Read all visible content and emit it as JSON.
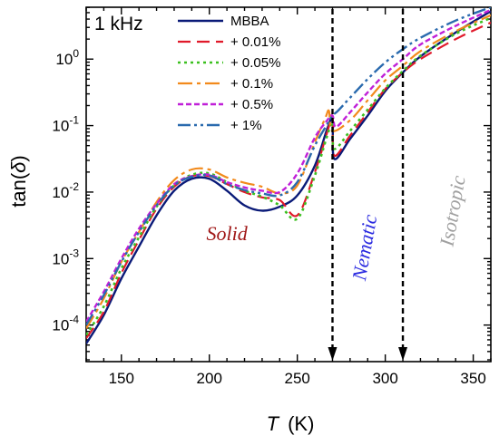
{
  "chart_data": {
    "type": "line",
    "corner_label": "1 kHz",
    "xlabel_symbol": "T",
    "xlabel_unit": "(K)",
    "ylabel_prefix": "tan(",
    "ylabel_symbol": "δ",
    "ylabel_suffix": ")",
    "y_scale": "log",
    "xlim": [
      130,
      360
    ],
    "ylim_log10": [
      -4.55,
      0.78
    ],
    "x_ticks": [
      150,
      200,
      250,
      300,
      350
    ],
    "y_ticks": [
      {
        "exp": -4,
        "base": "10",
        "sup": "-4"
      },
      {
        "exp": -3,
        "base": "10",
        "sup": "-3"
      },
      {
        "exp": -2,
        "base": "10",
        "sup": "-2"
      },
      {
        "exp": -1,
        "base": "10",
        "sup": "-1"
      },
      {
        "exp": 0,
        "base": "10",
        "sup": "0"
      }
    ],
    "legend_position": "top-left",
    "phase_labels": [
      {
        "text": "Solid",
        "x": 210,
        "ylog": -2.72,
        "rotate": 0,
        "color": "#a01818"
      },
      {
        "text": "Nematic",
        "x": 292,
        "ylog": -2.85,
        "rotate": -80,
        "color": "#2a2ae0"
      },
      {
        "text": "Isotropic",
        "x": 342,
        "ylog": -2.3,
        "rotate": -80,
        "color": "#a0a0a0"
      }
    ],
    "transitions": [
      270,
      310
    ],
    "series": [
      {
        "name": "MBBA",
        "color": "#0a1a78",
        "dash": "",
        "width": 2.4,
        "x": [
          130,
          140,
          150,
          160,
          170,
          180,
          190,
          200,
          210,
          220,
          230,
          240,
          250,
          260,
          267,
          270,
          271,
          280,
          290,
          300,
          310,
          320,
          340,
          360
        ],
        "ylog": [
          -4.28,
          -3.85,
          -3.3,
          -2.82,
          -2.35,
          -1.98,
          -1.8,
          -1.8,
          -1.98,
          -2.2,
          -2.28,
          -2.22,
          -2.05,
          -1.6,
          -1.05,
          -0.92,
          -1.5,
          -1.2,
          -0.85,
          -0.48,
          -0.2,
          0.04,
          0.4,
          0.72
        ]
      },
      {
        "name": "+ 0.01%",
        "color": "#e0192a",
        "dash": "14 7",
        "width": 2.2,
        "x": [
          130,
          140,
          150,
          160,
          170,
          180,
          190,
          200,
          210,
          220,
          230,
          240,
          250,
          260,
          267,
          270,
          271,
          280,
          290,
          300,
          310,
          320,
          340,
          360
        ],
        "ylog": [
          -4.2,
          -3.8,
          -3.22,
          -2.72,
          -2.25,
          -1.92,
          -1.76,
          -1.76,
          -1.88,
          -2.0,
          -2.08,
          -2.12,
          -2.35,
          -1.7,
          -1.1,
          -0.88,
          -1.45,
          -1.15,
          -0.8,
          -0.45,
          -0.2,
          0.0,
          0.3,
          0.55
        ]
      },
      {
        "name": "+ 0.05%",
        "color": "#3cc020",
        "dash": "3 4",
        "width": 2.6,
        "x": [
          130,
          140,
          150,
          160,
          170,
          180,
          190,
          200,
          210,
          220,
          230,
          240,
          250,
          260,
          267,
          270,
          271,
          280,
          290,
          300,
          310,
          320,
          340,
          360
        ],
        "ylog": [
          -4.15,
          -3.72,
          -3.15,
          -2.68,
          -2.22,
          -1.9,
          -1.74,
          -1.72,
          -1.85,
          -1.98,
          -2.07,
          -2.2,
          -2.4,
          -1.75,
          -1.15,
          -0.95,
          -1.35,
          -1.08,
          -0.76,
          -0.44,
          -0.18,
          0.05,
          0.38,
          0.62
        ]
      },
      {
        "name": "+ 0.1%",
        "color": "#f28a1c",
        "dash": "16 5 4 5",
        "width": 2.2,
        "x": [
          130,
          140,
          150,
          160,
          170,
          180,
          190,
          200,
          210,
          220,
          230,
          240,
          250,
          260,
          266,
          268,
          270,
          280,
          290,
          300,
          310,
          320,
          340,
          360
        ],
        "ylog": [
          -4.05,
          -3.6,
          -3.05,
          -2.6,
          -2.15,
          -1.82,
          -1.66,
          -1.66,
          -1.78,
          -1.86,
          -1.92,
          -2.02,
          -1.9,
          -1.25,
          -0.88,
          -0.78,
          -1.08,
          -0.92,
          -0.62,
          -0.32,
          -0.1,
          0.12,
          0.42,
          0.66
        ]
      },
      {
        "name": "+ 0.5%",
        "color": "#c020d8",
        "dash": "6 3",
        "width": 2.4,
        "x": [
          130,
          140,
          150,
          160,
          170,
          180,
          190,
          200,
          210,
          220,
          230,
          240,
          250,
          260,
          267,
          270,
          272,
          280,
          290,
          300,
          310,
          320,
          340,
          360
        ],
        "ylog": [
          -3.95,
          -3.5,
          -3.0,
          -2.55,
          -2.18,
          -1.88,
          -1.76,
          -1.74,
          -1.85,
          -1.93,
          -1.98,
          -2.0,
          -1.72,
          -1.18,
          -0.92,
          -0.85,
          -1.02,
          -0.8,
          -0.5,
          -0.22,
          0.0,
          0.22,
          0.5,
          0.74
        ]
      },
      {
        "name": "+ 1%",
        "color": "#2a6aae",
        "dash": "14 4 3 4 3 4",
        "width": 2.4,
        "x": [
          130,
          140,
          150,
          160,
          170,
          180,
          190,
          200,
          210,
          220,
          230,
          240,
          250,
          260,
          267,
          270,
          273,
          280,
          290,
          300,
          310,
          320,
          340,
          360
        ],
        "ylog": [
          -4.0,
          -3.55,
          -3.05,
          -2.6,
          -2.2,
          -1.9,
          -1.77,
          -1.75,
          -1.88,
          -1.97,
          -2.02,
          -2.05,
          -1.85,
          -1.3,
          -0.98,
          -0.85,
          -0.78,
          -0.58,
          -0.3,
          -0.05,
          0.15,
          0.32,
          0.58,
          0.78
        ]
      }
    ]
  }
}
